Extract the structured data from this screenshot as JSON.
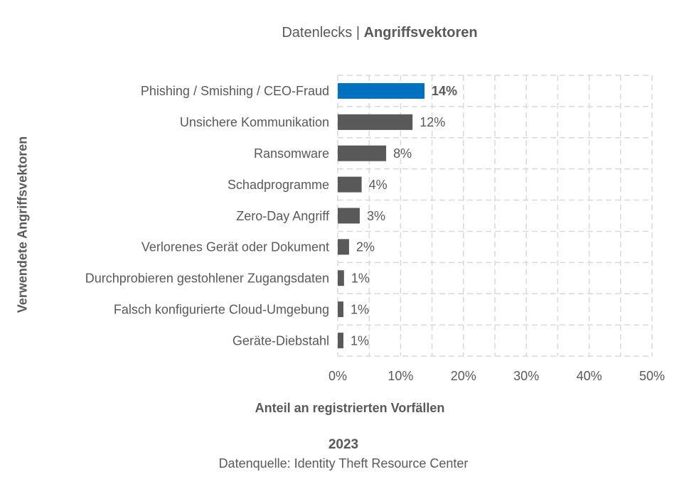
{
  "chart_data": {
    "type": "bar",
    "orientation": "horizontal",
    "title_prefix": "Datenlecks | ",
    "title_main": "Angriffsvektoren",
    "categories": [
      "Phishing / Smishing / CEO-Fraud",
      "Unsichere Kommunikation",
      "Ransomware",
      "Schadprogramme",
      "Zero-Day Angriff",
      "Verlorenes Gerät oder Dokument",
      "Durchprobieren gestohlener Zugangsdaten",
      "Falsch konfigurierte Cloud-Umgebung",
      "Geräte-Diebstahl"
    ],
    "values": [
      13.8,
      11.9,
      7.7,
      3.8,
      3.5,
      1.8,
      1.0,
      0.9,
      0.9
    ],
    "value_labels": [
      "14%",
      "12%",
      "8%",
      "4%",
      "3%",
      "2%",
      "1%",
      "1%",
      "1%"
    ],
    "highlight_index": 0,
    "xlim": [
      0,
      50
    ],
    "xticks": [
      0,
      10,
      20,
      30,
      40,
      50
    ],
    "xtick_labels": [
      "0%",
      "10%",
      "20%",
      "30%",
      "40%",
      "50%"
    ],
    "xlabel": "Anteil an registrierten Vorfällen",
    "ylabel": "Verwendete Angriffsvektoren",
    "grid": true,
    "colors": {
      "highlight": "#0070c0",
      "default": "#595959",
      "grid": "#d9d9d9",
      "text": "#595959"
    },
    "year": "2023",
    "source": "Datenquelle: Identity Theft Resource Center"
  }
}
